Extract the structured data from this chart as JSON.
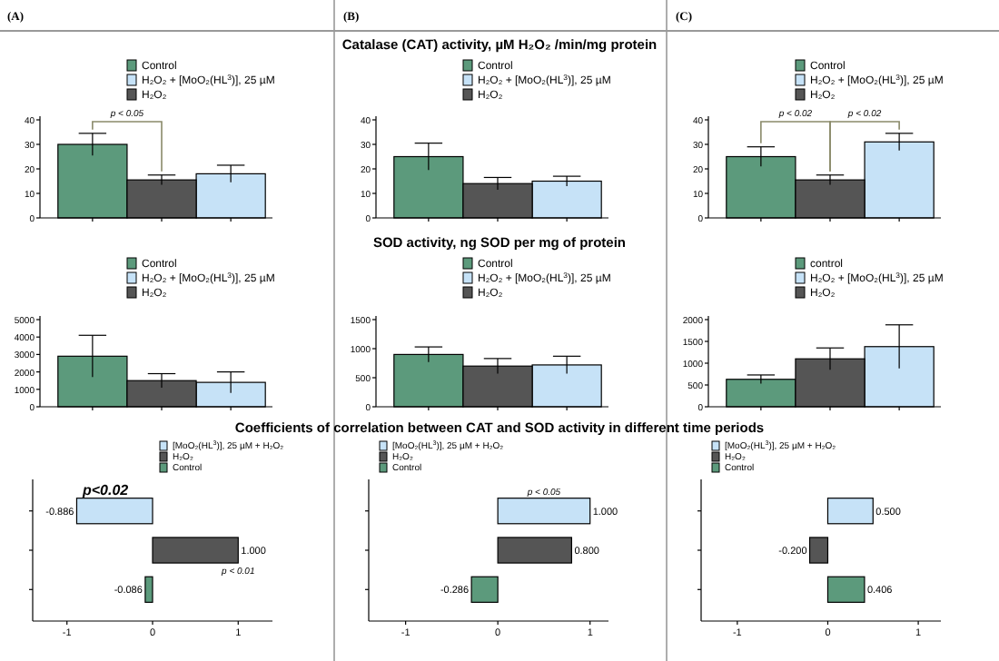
{
  "chart_data": [
    {
      "type": "bar",
      "subtitle": "(A)",
      "categories": [
        null,
        null,
        null
      ],
      "stacked": true,
      "tick_labels": "y",
      "legend": "top right",
      "ylim": [
        0,
        40
      ],
      "yticks": [
        0,
        10,
        20,
        30,
        40
      ],
      "annotations": [
        "p < 0.05"
      ],
      "series": [
        {
          "name": "Control",
          "color": "#5c9a7c",
          "values": [
            30,
            null,
            null
          ],
          "errors": [
            4.5,
            null,
            null
          ]
        },
        {
          "name": "H₂O₂ + [MoO₂(HL$^{3}$)], 25 µM",
          "color": "#c6e2f7",
          "values": [
            null,
            null,
            18
          ],
          "errors": [
            null,
            null,
            3.5
          ]
        },
        {
          "name": "H₂O₂",
          "color": "#555555",
          "values": [
            null,
            15.5,
            null
          ],
          "errors": [
            null,
            2,
            null
          ]
        }
      ]
    },
    {
      "type": "bar",
      "subtitle": "(B)",
      "title": "Catalase (CAT) activity, µM H₂O₂ /min/mg protein",
      "categories": [
        null,
        null,
        null
      ],
      "stacked": true,
      "tick_labels": "y",
      "legend": "top right",
      "ylim": [
        0,
        40
      ],
      "yticks": [
        0,
        10,
        20,
        30,
        40
      ],
      "series": [
        {
          "name": "Control",
          "color": "#5c9a7c",
          "values": [
            25,
            null,
            null
          ],
          "errors": [
            5.5,
            null,
            null
          ]
        },
        {
          "name": "H₂O₂ + [MoO₂(HL$^{3}$)], 25 µM",
          "color": "#c6e2f7",
          "values": [
            null,
            null,
            15
          ],
          "errors": [
            null,
            null,
            2
          ]
        },
        {
          "name": "H₂O₂",
          "color": "#555555",
          "values": [
            null,
            14,
            null
          ],
          "errors": [
            null,
            2.5,
            null
          ]
        }
      ]
    },
    {
      "type": "bar",
      "subtitle": "(C)",
      "categories": [
        null,
        null,
        null
      ],
      "stacked": true,
      "tick_labels": "y",
      "legend": "top right",
      "ylim": [
        0,
        40
      ],
      "yticks": [
        0,
        10,
        20,
        30,
        40
      ],
      "annotations": [
        "p < 0.02",
        "p < 0.02"
      ],
      "series": [
        {
          "name": "Control",
          "color": "#5c9a7c",
          "values": [
            25,
            null,
            null
          ],
          "errors": [
            4,
            null,
            null
          ]
        },
        {
          "name": "H₂O₂ + [MoO₂(HL$^{3}$)], 25 µM",
          "color": "#c6e2f7",
          "values": [
            null,
            null,
            31
          ],
          "errors": [
            null,
            null,
            3.5
          ]
        },
        {
          "name": "H₂O₂",
          "color": "#555555",
          "values": [
            null,
            15.5,
            null
          ],
          "errors": [
            null,
            2,
            null
          ]
        }
      ]
    },
    {
      "type": "bar",
      "categories": [
        null,
        null,
        null
      ],
      "stacked": true,
      "tick_labels": "y",
      "legend": "top right",
      "ylim": [
        0,
        5000
      ],
      "yticks": [
        0,
        1000,
        2000,
        3000,
        4000,
        5000
      ],
      "series": [
        {
          "name": "Control",
          "color": "#5c9a7c",
          "values": [
            2900,
            null,
            null
          ],
          "errors": [
            1200,
            null,
            null
          ]
        },
        {
          "name": "H₂O₂ + [MoO₂(HL$^{3}$)], 25 µM",
          "color": "#c6e2f7",
          "values": [
            null,
            null,
            1400
          ],
          "errors": [
            null,
            null,
            600
          ]
        },
        {
          "name": "H₂O₂",
          "color": "#555555",
          "values": [
            null,
            1500,
            null
          ],
          "errors": [
            null,
            400,
            null
          ]
        }
      ]
    },
    {
      "type": "bar",
      "title": "SOD activity, ng SOD per mg of protein",
      "categories": [
        null,
        null,
        null
      ],
      "stacked": true,
      "tick_labels": "y",
      "legend": "top right",
      "ylim": [
        0,
        1500
      ],
      "yticks": [
        0,
        500,
        1000,
        1500
      ],
      "series": [
        {
          "name": "Control",
          "color": "#5c9a7c",
          "values": [
            900,
            null,
            null
          ],
          "errors": [
            130,
            null,
            null
          ]
        },
        {
          "name": "H₂O₂ + [MoO₂(HL$^{3}$)], 25 µM",
          "color": "#c6e2f7",
          "values": [
            null,
            null,
            720
          ],
          "errors": [
            null,
            null,
            150
          ]
        },
        {
          "name": "H₂O₂",
          "color": "#555555",
          "values": [
            null,
            700,
            null
          ],
          "errors": [
            null,
            130,
            null
          ]
        }
      ]
    },
    {
      "type": "bar",
      "categories": [
        null,
        null,
        null
      ],
      "stacked": true,
      "tick_labels": "y",
      "legend": "top right",
      "ylim": [
        0,
        2000
      ],
      "yticks": [
        0,
        500,
        1000,
        1500,
        2000
      ],
      "series": [
        {
          "name": "control",
          "color": "#5c9a7c",
          "values": [
            630,
            null,
            null
          ],
          "errors": [
            100,
            null,
            null
          ]
        },
        {
          "name": "H₂O₂ + [MoO₂(HL$^{3}$)], 25 µM",
          "color": "#c6e2f7",
          "values": [
            null,
            null,
            1380
          ],
          "errors": [
            null,
            null,
            500
          ]
        },
        {
          "name": "H₂O₂",
          "color": "#555555",
          "values": [
            null,
            1100,
            null
          ],
          "errors": [
            null,
            250,
            null
          ]
        }
      ]
    },
    {
      "type": "bar",
      "orientation": "horizontal",
      "categories": [
        null,
        null,
        null
      ],
      "stacked": true,
      "tick_labels": "x",
      "legend": "top",
      "xlim": [
        -1.4,
        1.4
      ],
      "xticks": [
        -1,
        0,
        1
      ],
      "annotations": [
        "p<0.02",
        "p < 0.01"
      ],
      "series": [
        {
          "name": "[MoO₂(HL$^{3}$)], 25 µM + H₂O₂",
          "color": "#c6e2f7",
          "values": [
            -0.886,
            null,
            null
          ],
          "value_labels": [
            "-0.886",
            null,
            null
          ]
        },
        {
          "name": "H₂O₂",
          "color": "#555555",
          "values": [
            null,
            1,
            null
          ],
          "value_labels": [
            null,
            "1.000",
            null
          ]
        },
        {
          "name": "Control",
          "color": "#5c9a7c",
          "values": [
            null,
            null,
            -0.086
          ],
          "value_labels": [
            null,
            null,
            "-0.086"
          ]
        }
      ]
    },
    {
      "type": "bar",
      "orientation": "horizontal",
      "title": "Coefficients of correlation between CAT and SOD activity in different time periods",
      "categories": [
        null,
        null,
        null
      ],
      "stacked": true,
      "tick_labels": "x",
      "legend": "top left",
      "xlim": [
        -1.4,
        1.2
      ],
      "xticks": [
        -1,
        0,
        1
      ],
      "annotations": [
        "p < 0.05"
      ],
      "series": [
        {
          "name": "[MoO₂(HL$^{3}$)], 25 µM + H₂O₂",
          "color": "#c6e2f7",
          "values": [
            1,
            null,
            null
          ],
          "value_labels": [
            "1.000",
            null,
            null
          ]
        },
        {
          "name": "H₂O₂",
          "color": "#555555",
          "values": [
            null,
            0.8,
            null
          ],
          "value_labels": [
            null,
            "0.800",
            null
          ]
        },
        {
          "name": "Control",
          "color": "#5c9a7c",
          "values": [
            null,
            null,
            -0.286
          ],
          "value_labels": [
            null,
            null,
            "-0.286"
          ]
        }
      ]
    },
    {
      "type": "bar",
      "orientation": "horizontal",
      "categories": [
        null,
        null,
        null
      ],
      "stacked": true,
      "tick_labels": "x",
      "legend": "top left",
      "xlim": [
        -1.4,
        1.25
      ],
      "xticks": [
        -1,
        0,
        1
      ],
      "series": [
        {
          "name": "[MoO₂(HL$^{3}$)], 25 µM + H₂O₂",
          "color": "#c6e2f7",
          "values": [
            0.5,
            null,
            null
          ],
          "value_labels": [
            "0.500",
            null,
            null
          ]
        },
        {
          "name": "H₂O₂",
          "color": "#555555",
          "values": [
            null,
            -0.2,
            null
          ],
          "value_labels": [
            null,
            "-0.200",
            null
          ]
        },
        {
          "name": "Control",
          "color": "#5c9a7c",
          "values": [
            null,
            null,
            0.406
          ],
          "value_labels": [
            null,
            null,
            "0.406"
          ]
        }
      ]
    }
  ]
}
